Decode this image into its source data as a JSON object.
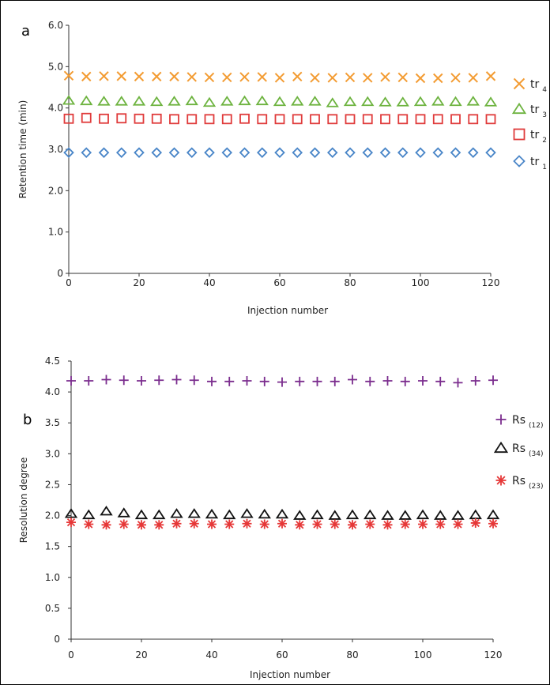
{
  "chart_data": [
    {
      "type": "scatter",
      "panel_label": "a",
      "xlabel": "Injection number",
      "ylabel": "Retention time (min)",
      "xlim": [
        0,
        120
      ],
      "ylim": [
        0,
        6.0
      ],
      "xticks": [
        "0",
        "20",
        "40",
        "60",
        "80",
        "100",
        "120"
      ],
      "yticks": [
        "0",
        "1.0",
        "2.0",
        "3.0",
        "4.0",
        "5.0",
        "6.0"
      ],
      "grid": false,
      "legend_position": "right",
      "x": [
        0,
        5,
        10,
        15,
        20,
        25,
        30,
        35,
        40,
        45,
        50,
        55,
        60,
        65,
        70,
        75,
        80,
        85,
        90,
        95,
        100,
        105,
        110,
        115,
        120
      ],
      "series": [
        {
          "name": "tr",
          "sub": "4",
          "marker": "x",
          "color": "#f39c33",
          "values": [
            4.78,
            4.76,
            4.77,
            4.77,
            4.76,
            4.76,
            4.76,
            4.75,
            4.74,
            4.74,
            4.75,
            4.75,
            4.73,
            4.76,
            4.73,
            4.73,
            4.74,
            4.73,
            4.75,
            4.74,
            4.72,
            4.72,
            4.73,
            4.73,
            4.77
          ]
        },
        {
          "name": "tr",
          "sub": "3",
          "marker": "triangle",
          "color": "#6db33f",
          "values": [
            4.18,
            4.17,
            4.16,
            4.16,
            4.16,
            4.15,
            4.16,
            4.17,
            4.13,
            4.16,
            4.17,
            4.17,
            4.15,
            4.16,
            4.16,
            4.12,
            4.15,
            4.15,
            4.14,
            4.14,
            4.15,
            4.16,
            4.15,
            4.16,
            4.14
          ]
        },
        {
          "name": "tr",
          "sub": "2",
          "marker": "square",
          "color": "#e03b3b",
          "values": [
            3.74,
            3.76,
            3.74,
            3.75,
            3.74,
            3.74,
            3.73,
            3.73,
            3.73,
            3.73,
            3.74,
            3.73,
            3.73,
            3.73,
            3.73,
            3.73,
            3.73,
            3.73,
            3.73,
            3.73,
            3.73,
            3.73,
            3.73,
            3.73,
            3.73
          ]
        },
        {
          "name": "tr",
          "sub": "1",
          "marker": "diamond",
          "color": "#4a86c8",
          "values": [
            2.92,
            2.92,
            2.92,
            2.92,
            2.92,
            2.92,
            2.92,
            2.92,
            2.92,
            2.92,
            2.92,
            2.92,
            2.92,
            2.92,
            2.92,
            2.92,
            2.92,
            2.92,
            2.92,
            2.92,
            2.92,
            2.92,
            2.92,
            2.92,
            2.92
          ]
        }
      ]
    },
    {
      "type": "scatter",
      "panel_label": "b",
      "xlabel": "Injection number",
      "ylabel": "Resolution degree",
      "xlim": [
        0,
        120
      ],
      "ylim": [
        0,
        4.5
      ],
      "xticks": [
        "0",
        "20",
        "40",
        "60",
        "80",
        "100",
        "120"
      ],
      "yticks": [
        "0",
        "0.5",
        "1.0",
        "1.5",
        "2.0",
        "2.5",
        "3.0",
        "3.5",
        "4.0",
        "4.5"
      ],
      "grid": false,
      "legend_position": "right",
      "x": [
        0,
        5,
        10,
        15,
        20,
        25,
        30,
        35,
        40,
        45,
        50,
        55,
        60,
        65,
        70,
        75,
        80,
        85,
        90,
        95,
        100,
        105,
        110,
        115,
        120
      ],
      "series": [
        {
          "name": "Rs",
          "sub": "(12)",
          "marker": "plus",
          "color": "#7b2d8e",
          "values": [
            4.18,
            4.18,
            4.2,
            4.19,
            4.18,
            4.19,
            4.2,
            4.19,
            4.17,
            4.17,
            4.18,
            4.17,
            4.16,
            4.17,
            4.17,
            4.17,
            4.2,
            4.17,
            4.18,
            4.17,
            4.18,
            4.17,
            4.15,
            4.18,
            4.19
          ]
        },
        {
          "name": "Rs",
          "sub": "(34)",
          "marker": "triangle",
          "color": "#111111",
          "values": [
            2.03,
            2.01,
            2.07,
            2.04,
            2.01,
            2.01,
            2.03,
            2.03,
            2.02,
            2.01,
            2.03,
            2.02,
            2.02,
            2.0,
            2.01,
            2.0,
            2.01,
            2.01,
            2.0,
            2.0,
            2.01,
            2.0,
            2.0,
            2.01,
            2.01
          ]
        },
        {
          "name": "Rs",
          "sub": "(23)",
          "marker": "asterisk",
          "color": "#e63838",
          "values": [
            1.89,
            1.86,
            1.85,
            1.86,
            1.85,
            1.85,
            1.87,
            1.87,
            1.86,
            1.86,
            1.87,
            1.86,
            1.87,
            1.85,
            1.86,
            1.86,
            1.85,
            1.86,
            1.85,
            1.86,
            1.86,
            1.86,
            1.86,
            1.88,
            1.87
          ]
        }
      ]
    }
  ]
}
